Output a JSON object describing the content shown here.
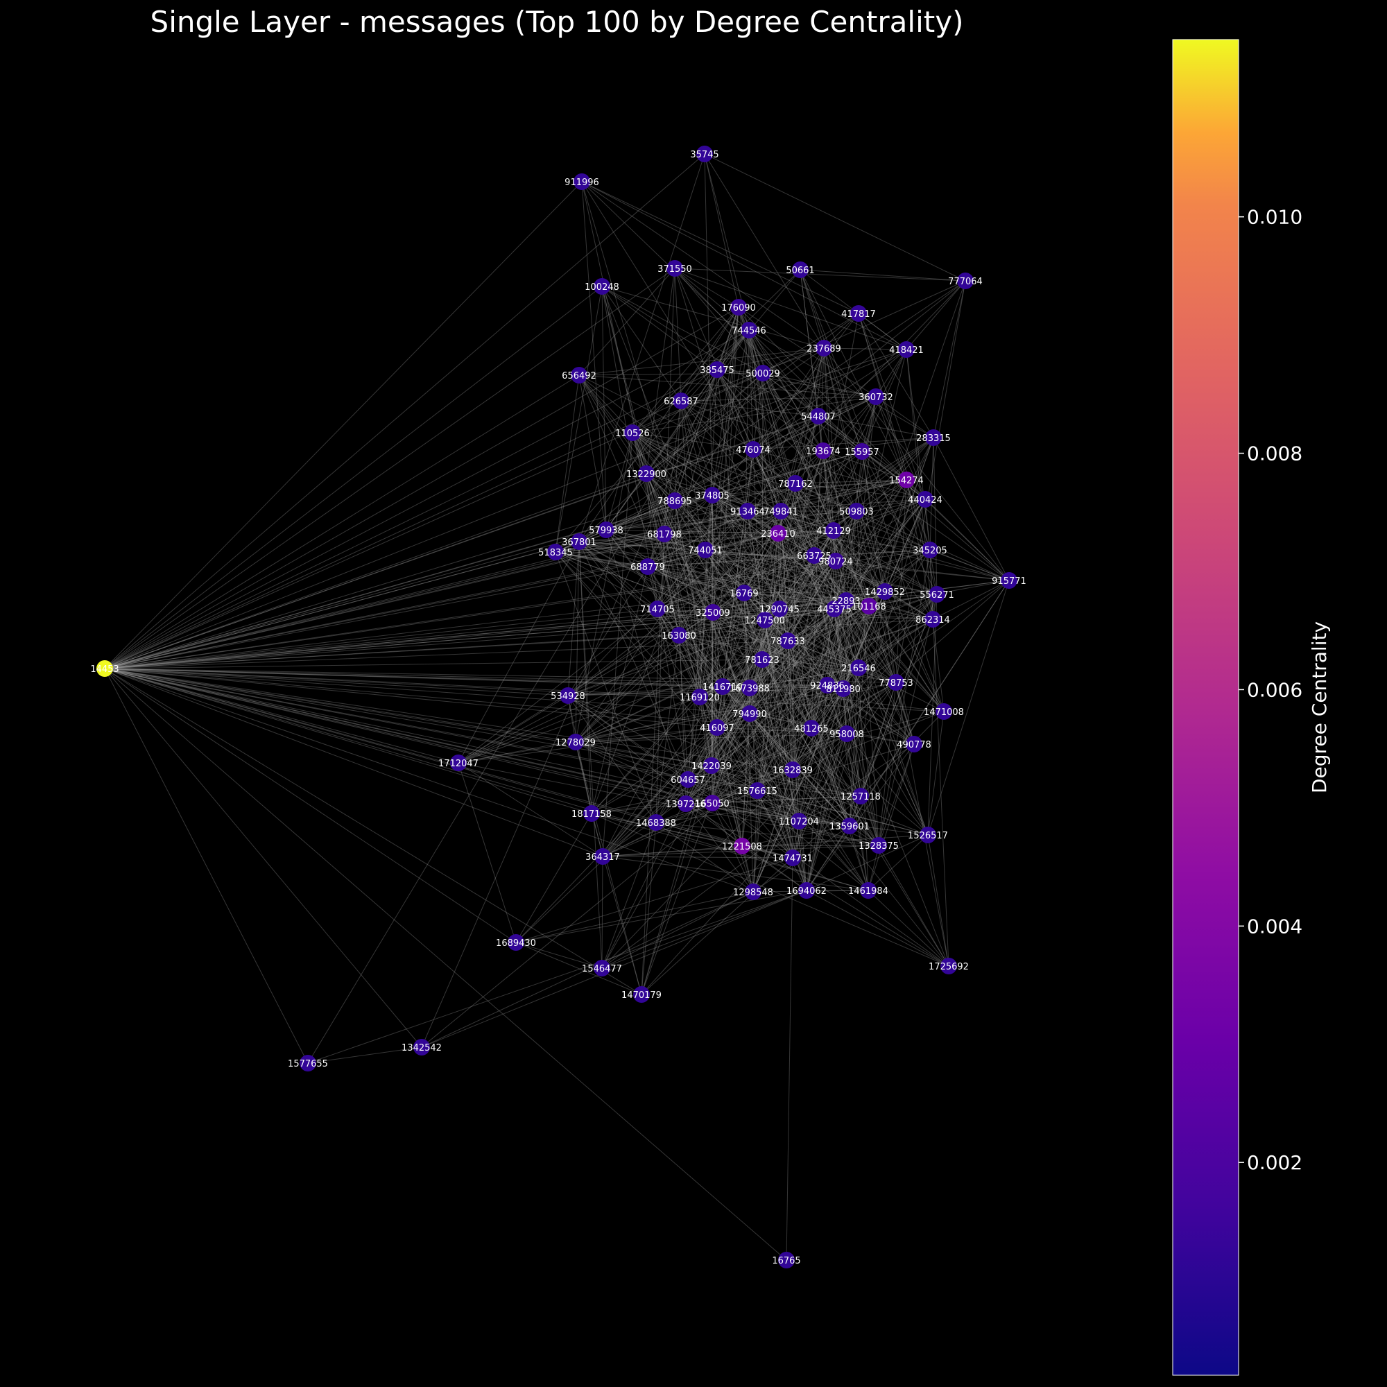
{
  "title": "Single Layer - messages (Top 100 by Degree Centrality)",
  "colorbar": {
    "label": "Degree Centrality",
    "colormap": "plasma",
    "vmin": 0.0002,
    "vmax": 0.0115,
    "ticks": [
      {
        "value": 0.002,
        "label": "0.002"
      },
      {
        "value": 0.004,
        "label": "0.004"
      },
      {
        "value": 0.006,
        "label": "0.006"
      },
      {
        "value": 0.008,
        "label": "0.008"
      },
      {
        "value": 0.01,
        "label": "0.010"
      }
    ]
  },
  "colors": {
    "background": "#000000",
    "edge": "#9a9a9a",
    "text": "#ffffff"
  },
  "nodes": [
    {
      "id": "35745",
      "c": 0.0012
    },
    {
      "id": "911996",
      "c": 0.0012
    },
    {
      "id": "371550",
      "c": 0.0012
    },
    {
      "id": "50661",
      "c": 0.0012
    },
    {
      "id": "100248",
      "c": 0.0012
    },
    {
      "id": "777064",
      "c": 0.0012
    },
    {
      "id": "176090",
      "c": 0.0014
    },
    {
      "id": "417817",
      "c": 0.0013
    },
    {
      "id": "744546",
      "c": 0.0012
    },
    {
      "id": "237689",
      "c": 0.0013
    },
    {
      "id": "418421",
      "c": 0.0012
    },
    {
      "id": "385475",
      "c": 0.0012
    },
    {
      "id": "500029",
      "c": 0.0012
    },
    {
      "id": "656492",
      "c": 0.0012
    },
    {
      "id": "626587",
      "c": 0.0012
    },
    {
      "id": "360732",
      "c": 0.0012
    },
    {
      "id": "544807",
      "c": 0.0012
    },
    {
      "id": "110526",
      "c": 0.0012
    },
    {
      "id": "283315",
      "c": 0.0012
    },
    {
      "id": "476074",
      "c": 0.0012
    },
    {
      "id": "193674",
      "c": 0.0018
    },
    {
      "id": "155957",
      "c": 0.0015
    },
    {
      "id": "1322900",
      "c": 0.0012
    },
    {
      "id": "154274",
      "c": 0.0032
    },
    {
      "id": "787162",
      "c": 0.0012
    },
    {
      "id": "374805",
      "c": 0.0012
    },
    {
      "id": "788695",
      "c": 0.0013
    },
    {
      "id": "440424",
      "c": 0.0012
    },
    {
      "id": "913464",
      "c": 0.0012
    },
    {
      "id": "749841",
      "c": 0.0013
    },
    {
      "id": "509803",
      "c": 0.0012
    },
    {
      "id": "579938",
      "c": 0.0012
    },
    {
      "id": "681798",
      "c": 0.0013
    },
    {
      "id": "236410",
      "c": 0.003
    },
    {
      "id": "412129",
      "c": 0.0013
    },
    {
      "id": "367801",
      "c": 0.0012
    },
    {
      "id": "518345",
      "c": 0.0012
    },
    {
      "id": "744051",
      "c": 0.0012
    },
    {
      "id": "663725",
      "c": 0.0012
    },
    {
      "id": "980724",
      "c": 0.0014
    },
    {
      "id": "345205",
      "c": 0.0012
    },
    {
      "id": "688779",
      "c": 0.0012
    },
    {
      "id": "915771",
      "c": 0.0012
    },
    {
      "id": "16769",
      "c": 0.0012
    },
    {
      "id": "1429852",
      "c": 0.0012
    },
    {
      "id": "556271",
      "c": 0.0012
    },
    {
      "id": "22893",
      "c": 0.0012
    },
    {
      "id": "714705",
      "c": 0.0012
    },
    {
      "id": "325009",
      "c": 0.0015
    },
    {
      "id": "1290745",
      "c": 0.0012
    },
    {
      "id": "445375",
      "c": 0.0013
    },
    {
      "id": "101168",
      "c": 0.0025
    },
    {
      "id": "1247500",
      "c": 0.0012
    },
    {
      "id": "862314",
      "c": 0.0012
    },
    {
      "id": "163080",
      "c": 0.0012
    },
    {
      "id": "787633",
      "c": 0.0012
    },
    {
      "id": "14453",
      "c": 0.0115
    },
    {
      "id": "781623",
      "c": 0.0012
    },
    {
      "id": "216546",
      "c": 0.0012
    },
    {
      "id": "778753",
      "c": 0.0012
    },
    {
      "id": "534928",
      "c": 0.0012
    },
    {
      "id": "1416710",
      "c": 0.0012
    },
    {
      "id": "1673988",
      "c": 0.0013
    },
    {
      "id": "924836",
      "c": 0.0012
    },
    {
      "id": "811980",
      "c": 0.0012
    },
    {
      "id": "1169120",
      "c": 0.0012
    },
    {
      "id": "1471008",
      "c": 0.0012
    },
    {
      "id": "794990",
      "c": 0.0012
    },
    {
      "id": "416097",
      "c": 0.0012
    },
    {
      "id": "481265",
      "c": 0.0012
    },
    {
      "id": "958008",
      "c": 0.0012
    },
    {
      "id": "1278029",
      "c": 0.0012
    },
    {
      "id": "490778",
      "c": 0.0012
    },
    {
      "id": "1712047",
      "c": 0.0012
    },
    {
      "id": "1422039",
      "c": 0.0013
    },
    {
      "id": "1632839",
      "c": 0.0012
    },
    {
      "id": "604657",
      "c": 0.0012
    },
    {
      "id": "1576615",
      "c": 0.0012
    },
    {
      "id": "1257118",
      "c": 0.0012
    },
    {
      "id": "1397216",
      "c": 0.0014
    },
    {
      "id": "165050",
      "c": 0.0018
    },
    {
      "id": "1817158",
      "c": 0.0012
    },
    {
      "id": "1468388",
      "c": 0.0012
    },
    {
      "id": "1107204",
      "c": 0.0012
    },
    {
      "id": "1359601",
      "c": 0.0012
    },
    {
      "id": "1526517",
      "c": 0.0012
    },
    {
      "id": "1221508",
      "c": 0.0035
    },
    {
      "id": "1328375",
      "c": 0.0012
    },
    {
      "id": "364317",
      "c": 0.0012
    },
    {
      "id": "1474731",
      "c": 0.0012
    },
    {
      "id": "1298548",
      "c": 0.0012
    },
    {
      "id": "1694062",
      "c": 0.0012
    },
    {
      "id": "1461984",
      "c": 0.0012
    },
    {
      "id": "1689430",
      "c": 0.0012
    },
    {
      "id": "1546477",
      "c": 0.0012
    },
    {
      "id": "1725692",
      "c": 0.0012
    },
    {
      "id": "1470179",
      "c": 0.0012
    },
    {
      "id": "1342542",
      "c": 0.0012
    },
    {
      "id": "1577655",
      "c": 0.0012
    },
    {
      "id": "16765",
      "c": 0.0012
    }
  ]
}
